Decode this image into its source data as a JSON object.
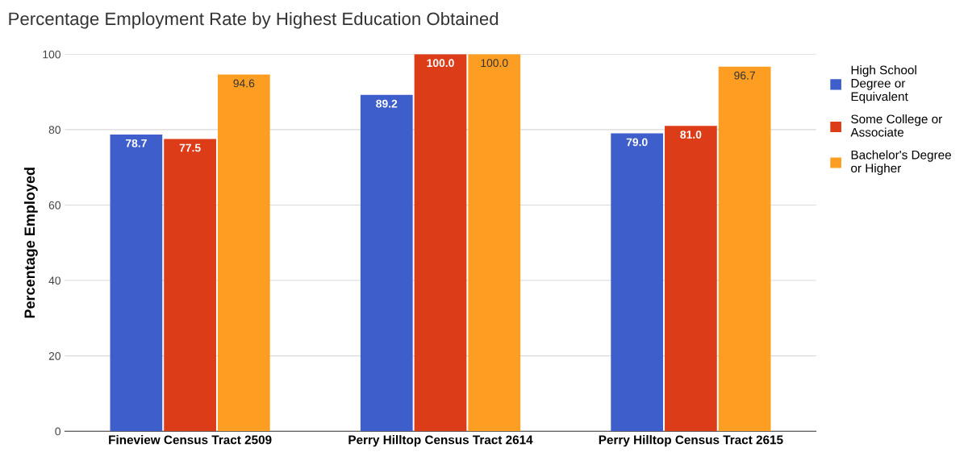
{
  "chart_data": {
    "type": "bar",
    "title": "Percentage Employment Rate by Highest Education Obtained",
    "ylabel": "Percentage Employed",
    "categories": [
      "Fineview Census Tract 2509",
      "Perry Hilltop Census Tract 2614",
      "Perry Hilltop Census Tract 2615"
    ],
    "series": [
      {
        "name": "High School\nDegree or\nEquivalent",
        "color": "#3e5fcb",
        "values": [
          78.7,
          89.2,
          79.0
        ],
        "value_labels": [
          "78.7",
          "89.2",
          "79.0"
        ]
      },
      {
        "name": "Some College or\nAssociate",
        "color": "#dd3c18",
        "values": [
          77.5,
          100.0,
          81.0
        ],
        "value_labels": [
          "77.5",
          "100.0",
          "81.0"
        ]
      },
      {
        "name": "Bachelor's Degree\nor Higher",
        "color": "#fd9e22",
        "values": [
          94.6,
          100.0,
          96.7
        ],
        "value_labels": [
          "94.6",
          "100.0",
          "96.7"
        ]
      }
    ],
    "ylim": [
      0,
      100
    ],
    "yticks": [
      0,
      20,
      40,
      60,
      80,
      100
    ],
    "grid": "y",
    "legend": "top right"
  }
}
